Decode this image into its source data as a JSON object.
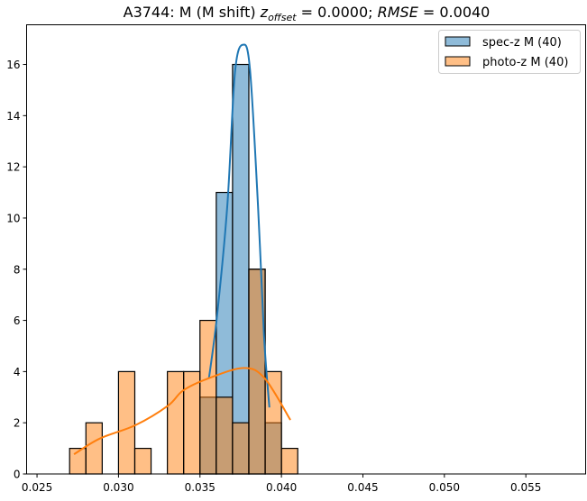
{
  "chart_data": {
    "type": "bar",
    "title": {
      "prefix": "A3744: M (M shift) ",
      "z_symbol": "z",
      "z_subscript": "offset",
      "z_value": " = 0.0000; ",
      "rmse_symbol": "RMSE",
      "rmse_value": " = 0.0040"
    },
    "xlabel": "",
    "ylabel": "",
    "xlim": [
      0.02436,
      0.05867
    ],
    "ylim": [
      0,
      17.55
    ],
    "xticks": [
      0.025,
      0.03,
      0.035,
      0.04,
      0.045,
      0.05,
      0.055
    ],
    "xtick_labels": [
      "0.025",
      "0.030",
      "0.035",
      "0.040",
      "0.045",
      "0.050",
      "0.055"
    ],
    "yticks": [
      0,
      2,
      4,
      6,
      8,
      10,
      12,
      14,
      16
    ],
    "ytick_labels": [
      "0",
      "2",
      "4",
      "6",
      "8",
      "10",
      "12",
      "14",
      "16"
    ],
    "bin_edges": [
      0.027,
      0.028,
      0.029,
      0.03,
      0.031,
      0.032,
      0.033,
      0.034,
      0.035,
      0.036,
      0.037,
      0.038,
      0.039,
      0.04,
      0.041
    ],
    "legend_position": "top-right",
    "series": [
      {
        "name": "spec-z M (40)",
        "color": "#1f77b4",
        "counts": [
          0,
          0,
          0,
          0,
          0,
          0,
          0,
          0,
          3,
          11,
          16,
          8,
          2,
          0
        ],
        "kde": [
          [
            0.03555,
            3.73
          ],
          [
            0.03605,
            6.19
          ],
          [
            0.03668,
            10.5
          ],
          [
            0.03715,
            15.7
          ],
          [
            0.03765,
            16.77
          ],
          [
            0.03807,
            15.8
          ],
          [
            0.03856,
            10.5
          ],
          [
            0.03893,
            5.4
          ],
          [
            0.03926,
            2.6
          ]
        ]
      },
      {
        "name": "photo-z M (40)",
        "color": "#ff7f0e",
        "counts": [
          1,
          2,
          0,
          4,
          1,
          0,
          4,
          4,
          6,
          3,
          2,
          8,
          4,
          1
        ],
        "kde": [
          [
            0.02727,
            0.77
          ],
          [
            0.02884,
            1.38
          ],
          [
            0.03105,
            1.91
          ],
          [
            0.03304,
            2.67
          ],
          [
            0.03396,
            3.26
          ],
          [
            0.0355,
            3.73
          ],
          [
            0.03769,
            4.14
          ],
          [
            0.03898,
            3.73
          ],
          [
            0.04055,
            2.11
          ]
        ]
      }
    ]
  }
}
